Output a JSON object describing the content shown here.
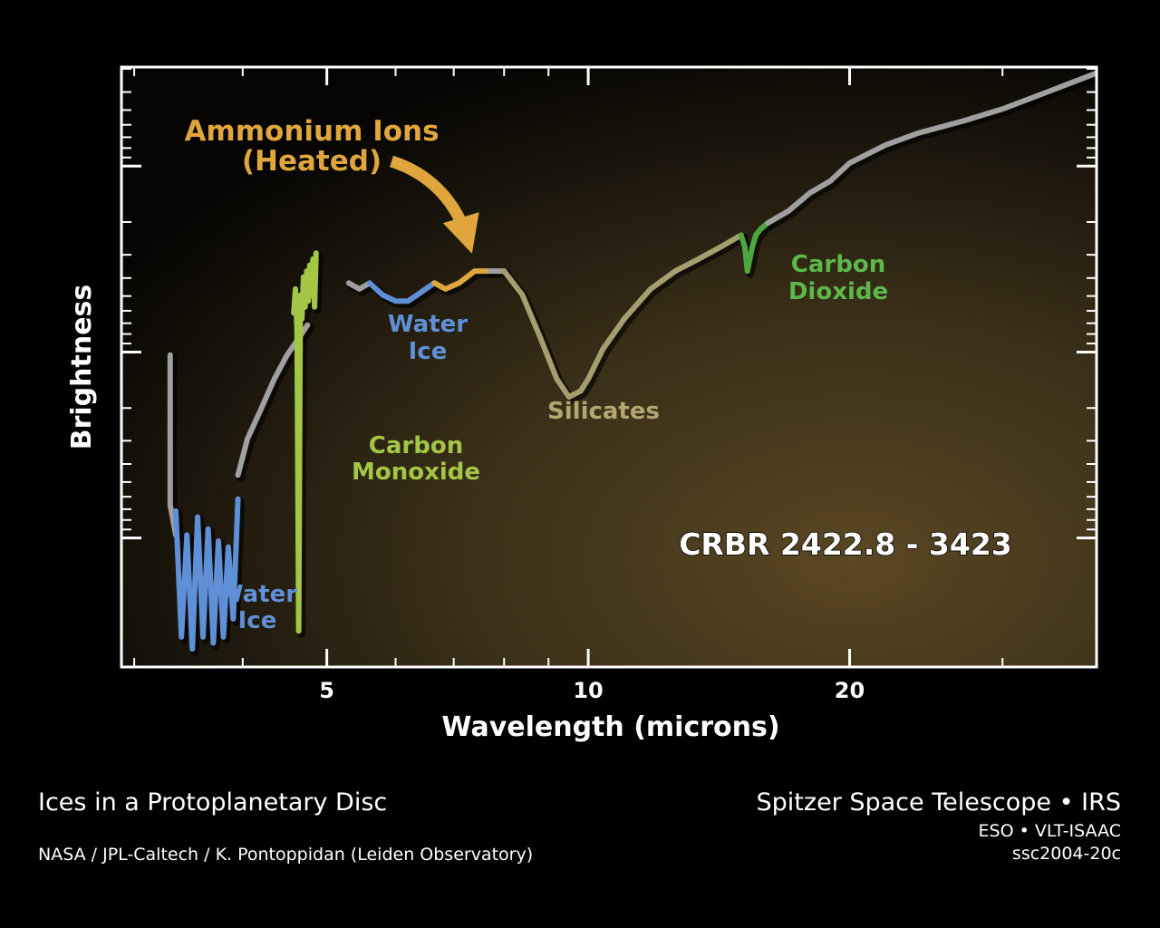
{
  "chart_data": {
    "type": "line",
    "title": "CRBR 2422.8 - 3423",
    "xlabel": "Wavelength (microns)",
    "ylabel": "Brightness",
    "x_scale": "log",
    "xlim": [
      2.9,
      38.5
    ],
    "ylim": [
      0,
      1
    ],
    "x_ticks": [
      5,
      10,
      20
    ],
    "y_ticks_labeled": false,
    "grid": false,
    "background": "dark to golden-brown gradient",
    "series": [
      {
        "color": "#a0a0a0",
        "x": [
          3.3,
          3.3,
          3.35
        ],
        "y": [
          0.52,
          0.27,
          0.22
        ]
      },
      {
        "color": "#5f8fd6",
        "x": [
          3.35,
          3.4,
          3.45,
          3.5,
          3.55,
          3.6,
          3.65,
          3.7,
          3.75,
          3.8,
          3.85,
          3.9,
          3.95
        ],
        "y": [
          0.26,
          0.05,
          0.22,
          0.03,
          0.25,
          0.05,
          0.23,
          0.04,
          0.21,
          0.05,
          0.2,
          0.08,
          0.28
        ]
      },
      {
        "color": "#a0a0a0",
        "x": [
          3.95,
          4.05,
          4.2,
          4.35,
          4.5,
          4.65,
          4.75
        ],
        "y": [
          0.32,
          0.38,
          0.43,
          0.48,
          0.52,
          0.55,
          0.57
        ]
      },
      {
        "color": "#a3c645",
        "x": [
          4.58,
          4.6,
          4.62,
          4.64,
          4.66,
          4.68,
          4.7,
          4.72,
          4.74,
          4.76,
          4.78,
          4.8,
          4.82,
          4.84,
          4.86
        ],
        "y": [
          0.59,
          0.63,
          0.56,
          0.06,
          0.62,
          0.58,
          0.65,
          0.6,
          0.66,
          0.61,
          0.67,
          0.62,
          0.68,
          0.6,
          0.69
        ]
      },
      {
        "color": "#a0a0a0",
        "x": [
          5.3,
          5.45,
          5.6
        ],
        "y": [
          0.64,
          0.63,
          0.64
        ]
      },
      {
        "color": "#5f8fd6",
        "x": [
          5.6,
          5.8,
          6.0,
          6.2,
          6.35,
          6.5,
          6.65
        ],
        "y": [
          0.64,
          0.62,
          0.61,
          0.61,
          0.62,
          0.63,
          0.64
        ]
      },
      {
        "color": "#e0a63d",
        "x": [
          6.65,
          6.85,
          7.1,
          7.4,
          7.7
        ],
        "y": [
          0.64,
          0.63,
          0.64,
          0.66,
          0.66
        ]
      },
      {
        "color": "#a0a0a0",
        "x": [
          7.7,
          8.0
        ],
        "y": [
          0.66,
          0.66
        ]
      },
      {
        "color": "#a69e6e",
        "x": [
          8.0,
          8.4,
          8.8,
          9.2,
          9.5,
          9.8,
          10.0,
          10.4,
          11.0,
          11.8,
          12.6,
          13.4,
          14.2,
          14.6,
          15.0
        ],
        "y": [
          0.66,
          0.62,
          0.55,
          0.48,
          0.45,
          0.46,
          0.48,
          0.53,
          0.58,
          0.63,
          0.66,
          0.68,
          0.7,
          0.71,
          0.72
        ]
      },
      {
        "color": "#4da640",
        "x": [
          15.0,
          15.15,
          15.25,
          15.45,
          15.6,
          15.8,
          16.1
        ],
        "y": [
          0.72,
          0.7,
          0.66,
          0.7,
          0.72,
          0.73,
          0.74
        ]
      },
      {
        "color": "#a0a0a0",
        "x": [
          16.1,
          17.0,
          18.0,
          19.0,
          20.0,
          22.0,
          24.0,
          27.0,
          30.0,
          34.0,
          38.5
        ],
        "y": [
          0.74,
          0.76,
          0.79,
          0.81,
          0.84,
          0.87,
          0.89,
          0.91,
          0.93,
          0.96,
          0.99
        ]
      }
    ],
    "annotations": [
      {
        "text": "Ammonium Ions",
        "color": "#e0a63d"
      },
      {
        "text": "(Heated)",
        "color": "#e0a63d"
      },
      {
        "text": "Water",
        "color": "#5f8fd6"
      },
      {
        "text": "Ice",
        "color": "#5f8fd6"
      },
      {
        "text": "Carbon",
        "color": "#a3c645"
      },
      {
        "text": "Monoxide",
        "color": "#a3c645"
      },
      {
        "text": "Silicates",
        "color": "#b3a872"
      },
      {
        "text": "Carbon",
        "color": "#5cb84a"
      },
      {
        "text": "Dioxide",
        "color": "#5cb84a"
      },
      {
        "text": "Water",
        "color": "#5f8fd6"
      },
      {
        "text": "Ice",
        "color": "#5f8fd6"
      }
    ]
  },
  "footer": {
    "title_left": "Ices in a Protoplanetary Disc",
    "credit_left": "NASA / JPL-Caltech / K. Pontoppidan (Leiden Observatory)",
    "title_right": "Spitzer Space Telescope • IRS",
    "sub1_right": "ESO • VLT-ISAAC",
    "sub2_right": "ssc2004-20c"
  }
}
